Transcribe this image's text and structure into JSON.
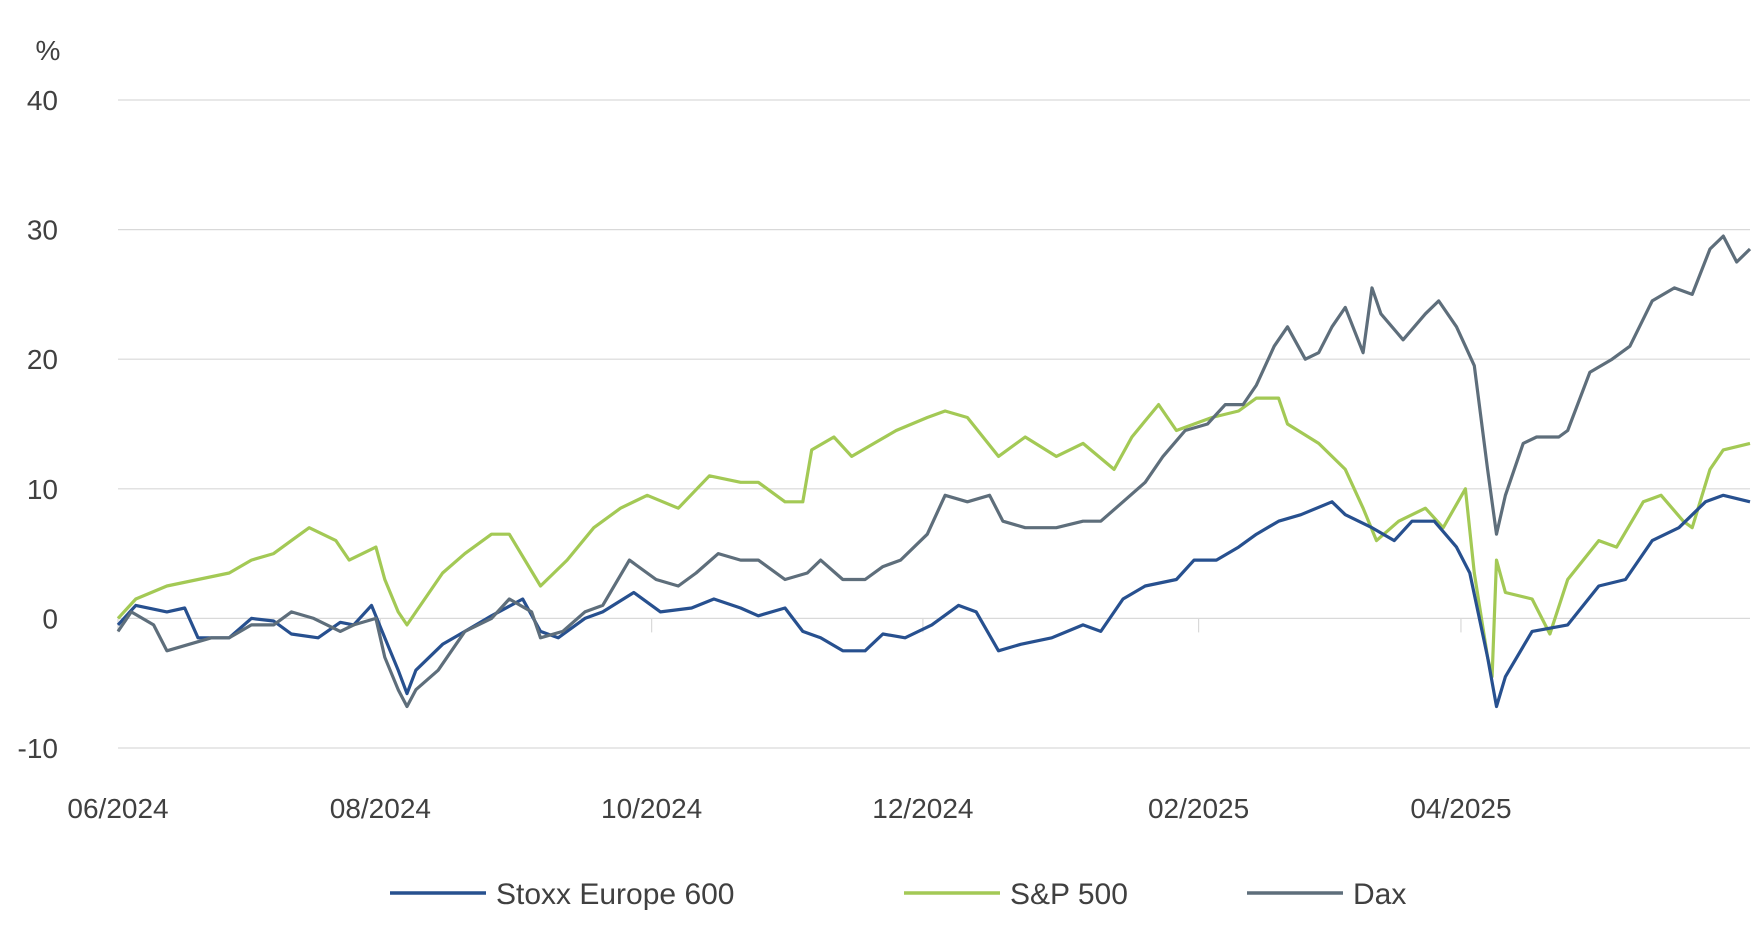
{
  "chart_data": {
    "type": "line",
    "title": "",
    "xlabel": "",
    "ylabel": "%",
    "ylim": [
      -10,
      40
    ],
    "yticks": [
      "-10",
      "0",
      "10",
      "20",
      "30",
      "40"
    ],
    "xlim": [
      "2024-06-03",
      "2025-06-05"
    ],
    "xticks": [
      {
        "date": "2024-06-01",
        "label": "06/2024"
      },
      {
        "date": "2024-08-01",
        "label": "08/2024"
      },
      {
        "date": "2024-10-01",
        "label": "10/2024"
      },
      {
        "date": "2024-12-01",
        "label": "12/2024"
      },
      {
        "date": "2025-02-01",
        "label": "02/2025"
      },
      {
        "date": "2025-04-01",
        "label": "04/2025"
      }
    ],
    "grid": true,
    "legend_position": "bottom",
    "series": [
      {
        "name": "Stoxx Europe 600",
        "color": "#27508f",
        "points": [
          [
            "2024-06-03",
            -0.5
          ],
          [
            "2024-06-07",
            1.0
          ],
          [
            "2024-06-14",
            0.5
          ],
          [
            "2024-06-18",
            0.8
          ],
          [
            "2024-06-21",
            -1.5
          ],
          [
            "2024-06-28",
            -1.5
          ],
          [
            "2024-07-03",
            0.0
          ],
          [
            "2024-07-08",
            -0.2
          ],
          [
            "2024-07-12",
            -1.2
          ],
          [
            "2024-07-18",
            -1.5
          ],
          [
            "2024-07-23",
            -0.3
          ],
          [
            "2024-07-26",
            -0.5
          ],
          [
            "2024-07-30",
            1.0
          ],
          [
            "2024-08-02",
            -1.5
          ],
          [
            "2024-08-05",
            -4.0
          ],
          [
            "2024-08-07",
            -5.8
          ],
          [
            "2024-08-09",
            -4.0
          ],
          [
            "2024-08-15",
            -2.0
          ],
          [
            "2024-08-20",
            -1.0
          ],
          [
            "2024-08-26",
            0.2
          ],
          [
            "2024-09-02",
            1.5
          ],
          [
            "2024-09-06",
            -1.0
          ],
          [
            "2024-09-10",
            -1.5
          ],
          [
            "2024-09-16",
            0.0
          ],
          [
            "2024-09-20",
            0.5
          ],
          [
            "2024-09-27",
            2.0
          ],
          [
            "2024-10-03",
            0.5
          ],
          [
            "2024-10-10",
            0.8
          ],
          [
            "2024-10-15",
            1.5
          ],
          [
            "2024-10-21",
            0.8
          ],
          [
            "2024-10-25",
            0.2
          ],
          [
            "2024-10-31",
            0.8
          ],
          [
            "2024-11-04",
            -1.0
          ],
          [
            "2024-11-08",
            -1.5
          ],
          [
            "2024-11-13",
            -2.5
          ],
          [
            "2024-11-18",
            -2.5
          ],
          [
            "2024-11-22",
            -1.2
          ],
          [
            "2024-11-27",
            -1.5
          ],
          [
            "2024-12-03",
            -0.5
          ],
          [
            "2024-12-09",
            1.0
          ],
          [
            "2024-12-13",
            0.5
          ],
          [
            "2024-12-18",
            -2.5
          ],
          [
            "2024-12-23",
            -2.0
          ],
          [
            "2024-12-30",
            -1.5
          ],
          [
            "2025-01-06",
            -0.5
          ],
          [
            "2025-01-10",
            -1.0
          ],
          [
            "2025-01-15",
            1.5
          ],
          [
            "2025-01-20",
            2.5
          ],
          [
            "2025-01-27",
            3.0
          ],
          [
            "2025-01-31",
            4.5
          ],
          [
            "2025-02-05",
            4.5
          ],
          [
            "2025-02-10",
            5.5
          ],
          [
            "2025-02-14",
            6.5
          ],
          [
            "2025-02-19",
            7.5
          ],
          [
            "2025-02-24",
            8.0
          ],
          [
            "2025-03-03",
            9.0
          ],
          [
            "2025-03-06",
            8.0
          ],
          [
            "2025-03-12",
            7.0
          ],
          [
            "2025-03-17",
            6.0
          ],
          [
            "2025-03-21",
            7.5
          ],
          [
            "2025-03-26",
            7.5
          ],
          [
            "2025-03-31",
            5.5
          ],
          [
            "2025-04-03",
            3.5
          ],
          [
            "2025-04-07",
            -3.0
          ],
          [
            "2025-04-09",
            -6.8
          ],
          [
            "2025-04-11",
            -4.5
          ],
          [
            "2025-04-17",
            -1.0
          ],
          [
            "2025-04-25",
            -0.5
          ],
          [
            "2025-05-02",
            2.5
          ],
          [
            "2025-05-08",
            3.0
          ],
          [
            "2025-05-14",
            6.0
          ],
          [
            "2025-05-20",
            7.0
          ],
          [
            "2025-05-26",
            9.0
          ],
          [
            "2025-05-30",
            9.5
          ],
          [
            "2025-06-05",
            9.0
          ]
        ]
      },
      {
        "name": "S&P 500",
        "color": "#a3c955",
        "points": [
          [
            "2024-06-03",
            0.0
          ],
          [
            "2024-06-07",
            1.5
          ],
          [
            "2024-06-14",
            2.5
          ],
          [
            "2024-06-21",
            3.0
          ],
          [
            "2024-06-28",
            3.5
          ],
          [
            "2024-07-03",
            4.5
          ],
          [
            "2024-07-08",
            5.0
          ],
          [
            "2024-07-12",
            6.0
          ],
          [
            "2024-07-16",
            7.0
          ],
          [
            "2024-07-22",
            6.0
          ],
          [
            "2024-07-25",
            4.5
          ],
          [
            "2024-07-31",
            5.5
          ],
          [
            "2024-08-02",
            3.0
          ],
          [
            "2024-08-05",
            0.5
          ],
          [
            "2024-08-07",
            -0.5
          ],
          [
            "2024-08-09",
            0.5
          ],
          [
            "2024-08-15",
            3.5
          ],
          [
            "2024-08-20",
            5.0
          ],
          [
            "2024-08-26",
            6.5
          ],
          [
            "2024-08-30",
            6.5
          ],
          [
            "2024-09-06",
            2.5
          ],
          [
            "2024-09-12",
            4.5
          ],
          [
            "2024-09-18",
            7.0
          ],
          [
            "2024-09-24",
            8.5
          ],
          [
            "2024-09-30",
            9.5
          ],
          [
            "2024-10-07",
            8.5
          ],
          [
            "2024-10-14",
            11.0
          ],
          [
            "2024-10-21",
            10.5
          ],
          [
            "2024-10-25",
            10.5
          ],
          [
            "2024-10-31",
            9.0
          ],
          [
            "2024-11-04",
            9.0
          ],
          [
            "2024-11-06",
            13.0
          ],
          [
            "2024-11-11",
            14.0
          ],
          [
            "2024-11-15",
            12.5
          ],
          [
            "2024-11-20",
            13.5
          ],
          [
            "2024-11-25",
            14.5
          ],
          [
            "2024-12-02",
            15.5
          ],
          [
            "2024-12-06",
            16.0
          ],
          [
            "2024-12-11",
            15.5
          ],
          [
            "2024-12-18",
            12.5
          ],
          [
            "2024-12-24",
            14.0
          ],
          [
            "2024-12-31",
            12.5
          ],
          [
            "2025-01-06",
            13.5
          ],
          [
            "2025-01-13",
            11.5
          ],
          [
            "2025-01-17",
            14.0
          ],
          [
            "2025-01-23",
            16.5
          ],
          [
            "2025-01-27",
            14.5
          ],
          [
            "2025-02-04",
            15.5
          ],
          [
            "2025-02-10",
            16.0
          ],
          [
            "2025-02-14",
            17.0
          ],
          [
            "2025-02-19",
            17.0
          ],
          [
            "2025-02-21",
            15.0
          ],
          [
            "2025-02-28",
            13.5
          ],
          [
            "2025-03-06",
            11.5
          ],
          [
            "2025-03-10",
            8.5
          ],
          [
            "2025-03-13",
            6.0
          ],
          [
            "2025-03-18",
            7.5
          ],
          [
            "2025-03-24",
            8.5
          ],
          [
            "2025-03-28",
            7.0
          ],
          [
            "2025-04-02",
            10.0
          ],
          [
            "2025-04-04",
            3.5
          ],
          [
            "2025-04-07",
            -3.0
          ],
          [
            "2025-04-08",
            -4.5
          ],
          [
            "2025-04-09",
            4.5
          ],
          [
            "2025-04-11",
            2.0
          ],
          [
            "2025-04-17",
            1.5
          ],
          [
            "2025-04-21",
            -1.2
          ],
          [
            "2025-04-25",
            3.0
          ],
          [
            "2025-05-02",
            6.0
          ],
          [
            "2025-05-06",
            5.5
          ],
          [
            "2025-05-12",
            9.0
          ],
          [
            "2025-05-16",
            9.5
          ],
          [
            "2025-05-21",
            7.5
          ],
          [
            "2025-05-23",
            7.0
          ],
          [
            "2025-05-27",
            11.5
          ],
          [
            "2025-05-30",
            13.0
          ],
          [
            "2025-06-05",
            13.5
          ]
        ]
      },
      {
        "name": "Dax",
        "color": "#5e6e7b",
        "points": [
          [
            "2024-06-03",
            -1.0
          ],
          [
            "2024-06-06",
            0.5
          ],
          [
            "2024-06-11",
            -0.5
          ],
          [
            "2024-06-14",
            -2.5
          ],
          [
            "2024-06-19",
            -2.0
          ],
          [
            "2024-06-24",
            -1.5
          ],
          [
            "2024-06-28",
            -1.5
          ],
          [
            "2024-07-03",
            -0.5
          ],
          [
            "2024-07-08",
            -0.5
          ],
          [
            "2024-07-12",
            0.5
          ],
          [
            "2024-07-17",
            0.0
          ],
          [
            "2024-07-23",
            -1.0
          ],
          [
            "2024-07-26",
            -0.5
          ],
          [
            "2024-07-31",
            0.0
          ],
          [
            "2024-08-02",
            -3.0
          ],
          [
            "2024-08-05",
            -5.5
          ],
          [
            "2024-08-07",
            -6.8
          ],
          [
            "2024-08-09",
            -5.5
          ],
          [
            "2024-08-14",
            -4.0
          ],
          [
            "2024-08-20",
            -1.0
          ],
          [
            "2024-08-26",
            0.0
          ],
          [
            "2024-08-30",
            1.5
          ],
          [
            "2024-09-04",
            0.5
          ],
          [
            "2024-09-06",
            -1.5
          ],
          [
            "2024-09-11",
            -1.0
          ],
          [
            "2024-09-16",
            0.5
          ],
          [
            "2024-09-20",
            1.0
          ],
          [
            "2024-09-26",
            4.5
          ],
          [
            "2024-10-02",
            3.0
          ],
          [
            "2024-10-07",
            2.5
          ],
          [
            "2024-10-11",
            3.5
          ],
          [
            "2024-10-16",
            5.0
          ],
          [
            "2024-10-21",
            4.5
          ],
          [
            "2024-10-25",
            4.5
          ],
          [
            "2024-10-31",
            3.0
          ],
          [
            "2024-11-05",
            3.5
          ],
          [
            "2024-11-08",
            4.5
          ],
          [
            "2024-11-13",
            3.0
          ],
          [
            "2024-11-18",
            3.0
          ],
          [
            "2024-11-22",
            4.0
          ],
          [
            "2024-11-26",
            4.5
          ],
          [
            "2024-12-02",
            6.5
          ],
          [
            "2024-12-06",
            9.5
          ],
          [
            "2024-12-11",
            9.0
          ],
          [
            "2024-12-16",
            9.5
          ],
          [
            "2024-12-19",
            7.5
          ],
          [
            "2024-12-24",
            7.0
          ],
          [
            "2024-12-31",
            7.0
          ],
          [
            "2025-01-06",
            7.5
          ],
          [
            "2025-01-10",
            7.5
          ],
          [
            "2025-01-15",
            9.0
          ],
          [
            "2025-01-20",
            10.5
          ],
          [
            "2025-01-24",
            12.5
          ],
          [
            "2025-01-29",
            14.5
          ],
          [
            "2025-02-03",
            15.0
          ],
          [
            "2025-02-07",
            16.5
          ],
          [
            "2025-02-11",
            16.5
          ],
          [
            "2025-02-14",
            18.0
          ],
          [
            "2025-02-18",
            21.0
          ],
          [
            "2025-02-21",
            22.5
          ],
          [
            "2025-02-25",
            20.0
          ],
          [
            "2025-02-28",
            20.5
          ],
          [
            "2025-03-03",
            22.5
          ],
          [
            "2025-03-06",
            24.0
          ],
          [
            "2025-03-10",
            20.5
          ],
          [
            "2025-03-12",
            25.5
          ],
          [
            "2025-03-14",
            23.5
          ],
          [
            "2025-03-19",
            21.5
          ],
          [
            "2025-03-24",
            23.5
          ],
          [
            "2025-03-27",
            24.5
          ],
          [
            "2025-03-31",
            22.5
          ],
          [
            "2025-04-02",
            21.0
          ],
          [
            "2025-04-04",
            19.5
          ],
          [
            "2025-04-07",
            11.5
          ],
          [
            "2025-04-09",
            6.5
          ],
          [
            "2025-04-11",
            9.5
          ],
          [
            "2025-04-15",
            13.5
          ],
          [
            "2025-04-18",
            14.0
          ],
          [
            "2025-04-23",
            14.0
          ],
          [
            "2025-04-25",
            14.5
          ],
          [
            "2025-04-30",
            19.0
          ],
          [
            "2025-05-05",
            20.0
          ],
          [
            "2025-05-09",
            21.0
          ],
          [
            "2025-05-14",
            24.5
          ],
          [
            "2025-05-19",
            25.5
          ],
          [
            "2025-05-23",
            25.0
          ],
          [
            "2025-05-27",
            28.5
          ],
          [
            "2025-05-30",
            29.5
          ],
          [
            "2025-06-02",
            27.5
          ],
          [
            "2025-06-05",
            28.5
          ]
        ]
      }
    ]
  }
}
